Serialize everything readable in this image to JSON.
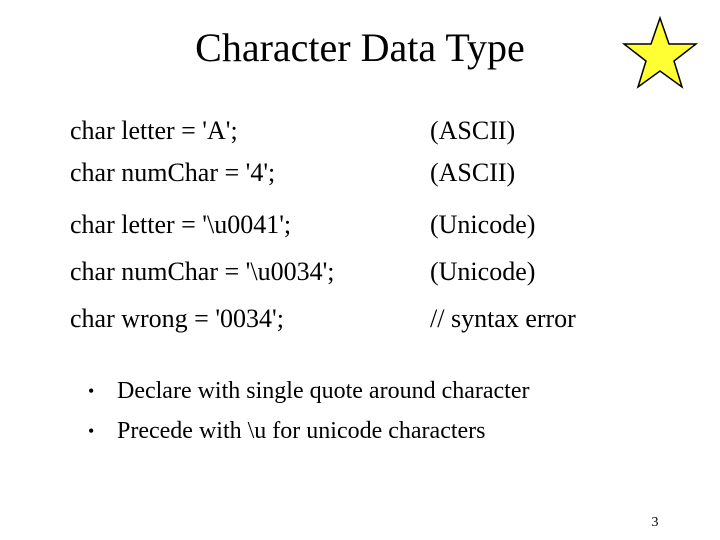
{
  "slide": {
    "title": "Character Data Type",
    "decoration": {
      "icon": "star-icon",
      "fill_color": "#ffff33",
      "stroke_color": "#000000"
    },
    "code_lines": [
      {
        "statement": "char letter = 'A';",
        "note": "(ASCII)"
      },
      {
        "statement": "char numChar = '4';",
        "note": "(ASCII)"
      },
      {
        "statement": "char letter = '\\u0041';",
        "note": "(Unicode)"
      },
      {
        "statement": "char numChar = '\\u0034';",
        "note": "(Unicode)"
      },
      {
        "statement": "char wrong = '0034';",
        "note": "// syntax error"
      }
    ],
    "bullets": [
      {
        "marker": "•",
        "text": "Declare with single quote around character"
      },
      {
        "marker": "•",
        "text": "Precede with \\u for unicode characters"
      }
    ],
    "page_number": "3"
  }
}
